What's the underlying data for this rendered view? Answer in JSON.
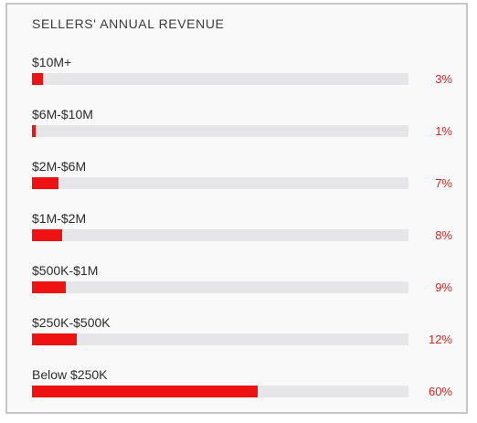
{
  "chart_data": {
    "type": "bar",
    "orientation": "horizontal",
    "title": "SELLERS' ANNUAL REVENUE",
    "categories": [
      "$10M+",
      "$6M-$10M",
      "$2M-$6M",
      "$1M-$2M",
      "$500K-$1M",
      "$250K-$500K",
      "Below $250K"
    ],
    "values": [
      3,
      1,
      7,
      8,
      9,
      12,
      60
    ],
    "value_labels": [
      "3%",
      "1%",
      "7%",
      "8%",
      "9%",
      "12%",
      "60%"
    ],
    "unit": "%",
    "xlim": [
      0,
      100
    ],
    "grid": false,
    "legend": "none",
    "colors": {
      "bar": "#ee1212",
      "track": "#e6e6e8",
      "value_label": "#e0201e",
      "background": "#f9f9fa",
      "border": "#c7c7c9"
    }
  }
}
